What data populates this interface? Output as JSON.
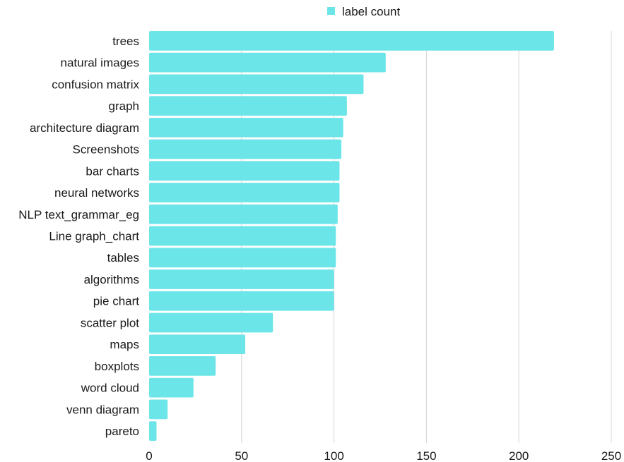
{
  "chart_data": {
    "type": "bar",
    "orientation": "horizontal",
    "categories": [
      "trees",
      "natural images",
      "confusion matrix",
      "graph",
      "architecture diagram",
      "Screenshots",
      "bar charts",
      "neural networks",
      "NLP text_grammar_eg",
      "Line graph_chart",
      "tables",
      "algorithms",
      "pie chart",
      "scatter plot",
      "maps",
      "boxplots",
      "word cloud",
      "venn diagram",
      "pareto"
    ],
    "series": [
      {
        "name": "label count",
        "values": [
          219,
          128,
          116,
          107,
          105,
          104,
          103,
          103,
          102,
          101,
          101,
          100,
          100,
          67,
          52,
          36,
          24,
          10,
          4
        ]
      }
    ],
    "xlim": [
      0,
      250
    ],
    "xticks": [
      0,
      50,
      100,
      150,
      200,
      250
    ],
    "grid": true,
    "legend": "top-center",
    "color": "#6ce5e8"
  }
}
